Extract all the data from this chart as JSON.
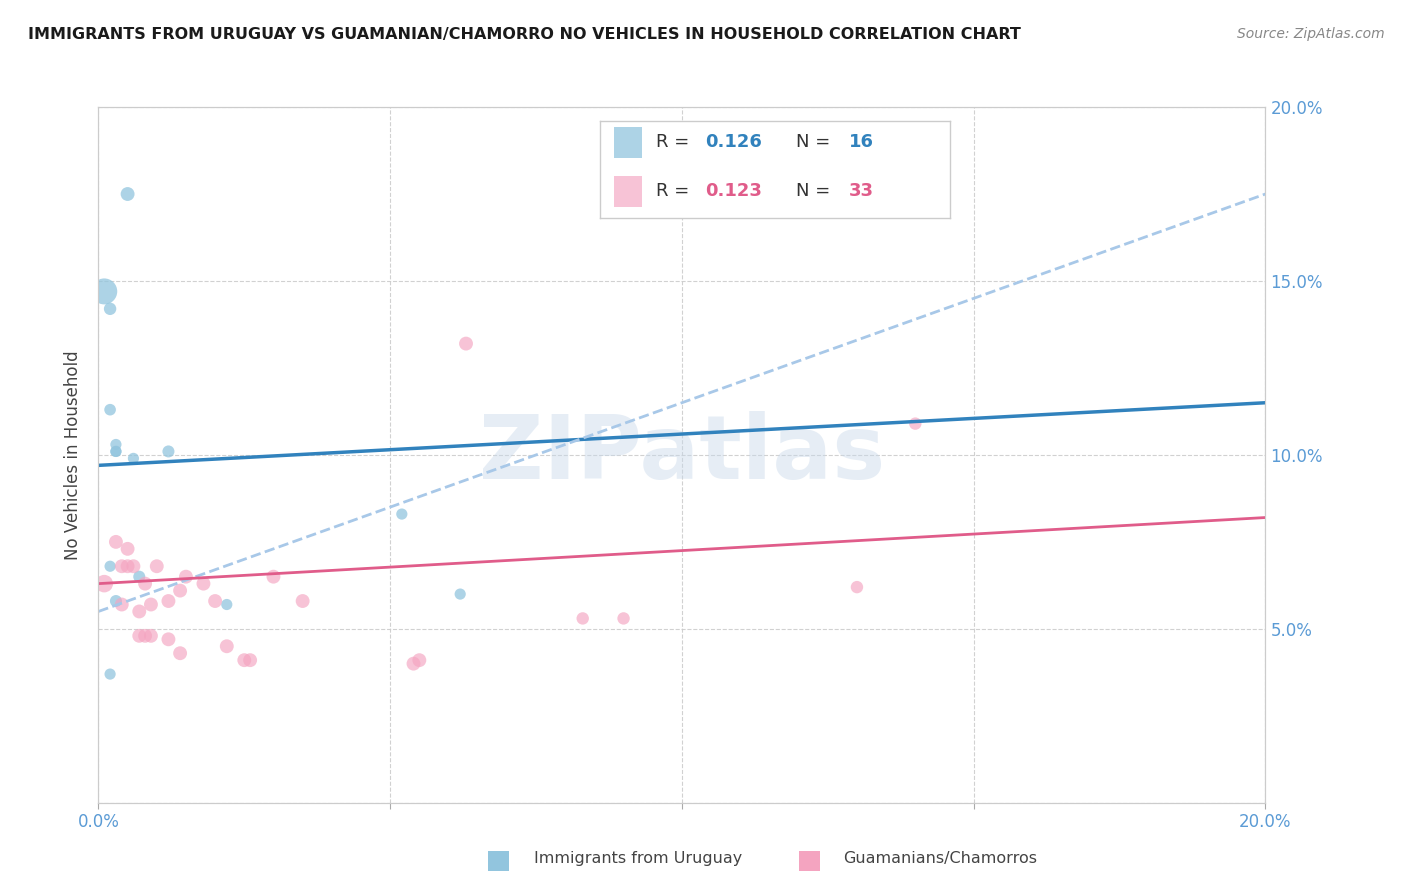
{
  "title": "IMMIGRANTS FROM URUGUAY VS GUAMANIAN/CHAMORRO NO VEHICLES IN HOUSEHOLD CORRELATION CHART",
  "source": "Source: ZipAtlas.com",
  "ylabel": "No Vehicles in Household",
  "xlim": [
    0.0,
    0.2
  ],
  "ylim": [
    0.0,
    0.2
  ],
  "xticks": [
    0.0,
    0.05,
    0.1,
    0.15,
    0.2
  ],
  "yticks": [
    0.0,
    0.05,
    0.1,
    0.15,
    0.2
  ],
  "blue_color": "#92c5de",
  "pink_color": "#f4a4c0",
  "blue_line_color": "#3182bd",
  "pink_line_color": "#e05c8a",
  "dashed_line_color": "#a8c8e8",
  "watermark_text": "ZIPatlas",
  "legend_blue_R": "0.126",
  "legend_blue_N": "16",
  "legend_pink_R": "0.123",
  "legend_pink_N": "33",
  "blue_scatter_x": [
    0.001,
    0.005,
    0.002,
    0.002,
    0.003,
    0.003,
    0.003,
    0.006,
    0.007,
    0.012,
    0.003,
    0.052,
    0.002,
    0.022,
    0.062,
    0.002
  ],
  "blue_scatter_y": [
    0.147,
    0.175,
    0.142,
    0.113,
    0.103,
    0.101,
    0.101,
    0.099,
    0.065,
    0.101,
    0.058,
    0.083,
    0.068,
    0.057,
    0.06,
    0.037
  ],
  "blue_scatter_size": [
    350,
    100,
    80,
    70,
    65,
    65,
    65,
    65,
    75,
    75,
    75,
    65,
    65,
    65,
    65,
    65
  ],
  "pink_scatter_x": [
    0.001,
    0.003,
    0.004,
    0.004,
    0.005,
    0.005,
    0.006,
    0.007,
    0.007,
    0.008,
    0.008,
    0.009,
    0.009,
    0.01,
    0.012,
    0.012,
    0.014,
    0.014,
    0.015,
    0.018,
    0.02,
    0.022,
    0.025,
    0.026,
    0.03,
    0.035,
    0.054,
    0.055,
    0.063,
    0.083,
    0.09,
    0.13,
    0.14
  ],
  "pink_scatter_y": [
    0.063,
    0.075,
    0.068,
    0.057,
    0.068,
    0.073,
    0.068,
    0.055,
    0.048,
    0.048,
    0.063,
    0.048,
    0.057,
    0.068,
    0.058,
    0.047,
    0.061,
    0.043,
    0.065,
    0.063,
    0.058,
    0.045,
    0.041,
    0.041,
    0.065,
    0.058,
    0.04,
    0.041,
    0.132,
    0.053,
    0.053,
    0.062,
    0.109
  ],
  "pink_scatter_size": [
    160,
    100,
    100,
    100,
    100,
    100,
    100,
    100,
    100,
    100,
    100,
    100,
    100,
    100,
    100,
    100,
    100,
    100,
    100,
    100,
    100,
    100,
    100,
    100,
    100,
    100,
    100,
    100,
    100,
    80,
    80,
    80,
    80
  ],
  "blue_trendline": [
    0.097,
    0.115
  ],
  "blue_dashed": [
    0.055,
    0.175
  ],
  "pink_trendline": [
    0.063,
    0.082
  ],
  "grid_color": "#cccccc",
  "background_color": "#ffffff",
  "tick_color": "#5b9bd5",
  "label_color": "#444444"
}
